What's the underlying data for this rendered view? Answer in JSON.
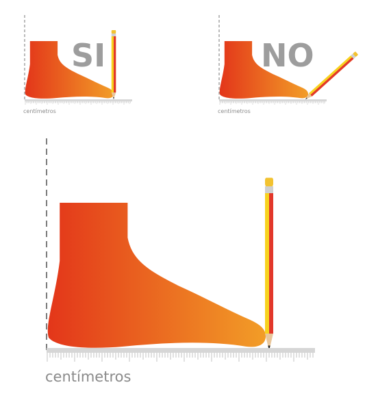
{
  "panels": {
    "correct": {
      "verdict": "SI",
      "ruler_label": "centímetros"
    },
    "wrong": {
      "verdict": "NO",
      "ruler_label": "centímetros"
    },
    "main": {
      "ruler_label": "centímetros"
    }
  },
  "colors": {
    "foot_gradient_start": "#e3361a",
    "foot_gradient_end": "#f29d27",
    "ruler": "#d6d6d6",
    "ticks": "#a9a9a9",
    "verdict_text": "#9d9d9d",
    "pencil_yellow": "#f7d21e",
    "pencil_red": "#e2372a",
    "pencil_wood": "#e9c69a"
  },
  "icons": {
    "foot": "foot-silhouette-icon",
    "pencil": "pencil-icon",
    "ruler": "ruler-icon"
  }
}
